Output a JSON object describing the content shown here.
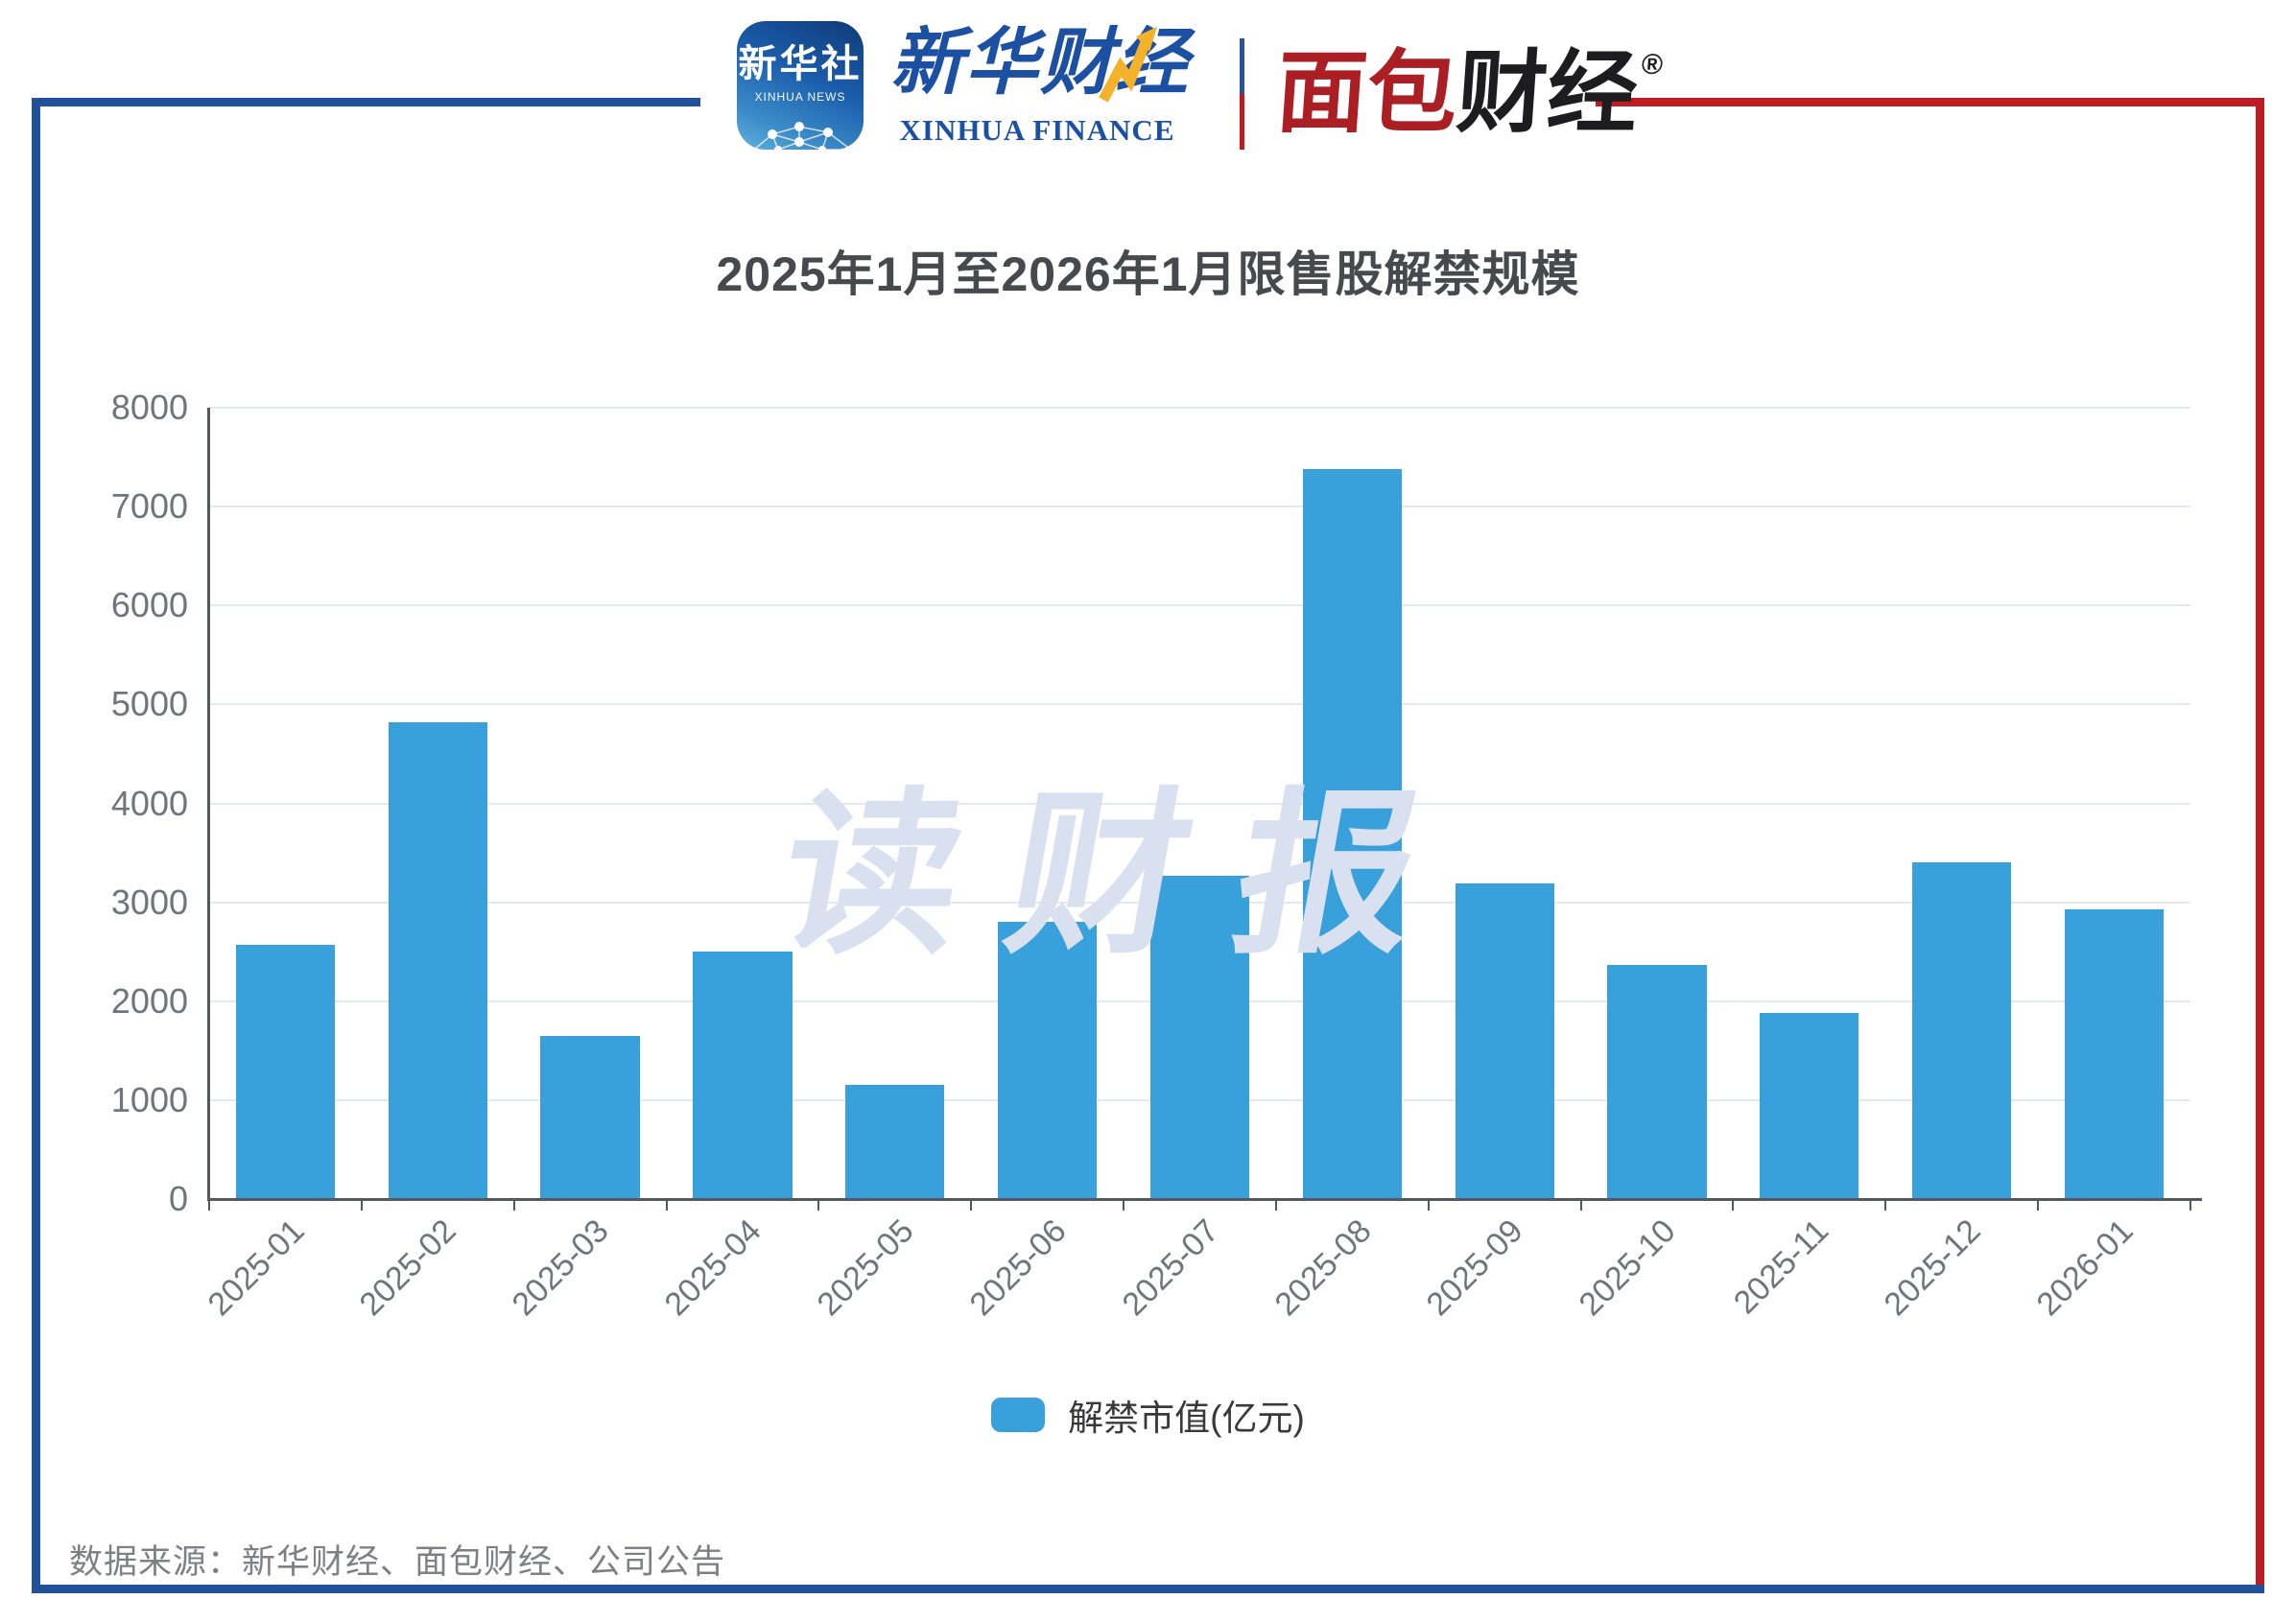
{
  "header": {
    "xinhua_news": {
      "cn": "新华社",
      "en": "XINHUA NEWS"
    },
    "xinhua_finance": {
      "cn": "新华财经",
      "en": "XINHUA FINANCE"
    },
    "mianbao": {
      "part1": "面包",
      "part2": "财经",
      "reg": "®"
    }
  },
  "watermark": "读财报",
  "footer": {
    "source": "数据来源：新华财经、面包财经、公司公告"
  },
  "colors": {
    "bar": "#38a0db",
    "frame_blue": "#21519b",
    "frame_red": "#be1b22",
    "watermark": "#d9e0ef",
    "divider_blue": "#2a5298",
    "divider_red": "#c01920"
  },
  "chart_data": {
    "type": "bar",
    "title": "2025年1月至2026年1月限售股解禁规模",
    "categories": [
      "2025-01",
      "2025-02",
      "2025-03",
      "2025-04",
      "2025-05",
      "2025-06",
      "2025-07",
      "2025-08",
      "2025-09",
      "2025-10",
      "2025-11",
      "2025-12",
      "2026-01"
    ],
    "series": [
      {
        "name": "解禁市值(亿元)",
        "values": [
          2570,
          4820,
          1650,
          2500,
          1150,
          2800,
          3270,
          7380,
          3190,
          2370,
          1880,
          3400,
          2930
        ]
      }
    ],
    "xlabel": "",
    "ylabel": "",
    "ylim": [
      0,
      8000
    ],
    "y_ticks": [
      0,
      1000,
      2000,
      3000,
      4000,
      5000,
      6000,
      7000,
      8000
    ],
    "grid": true,
    "legend_position": "bottom",
    "x_label_rotation": -45
  }
}
